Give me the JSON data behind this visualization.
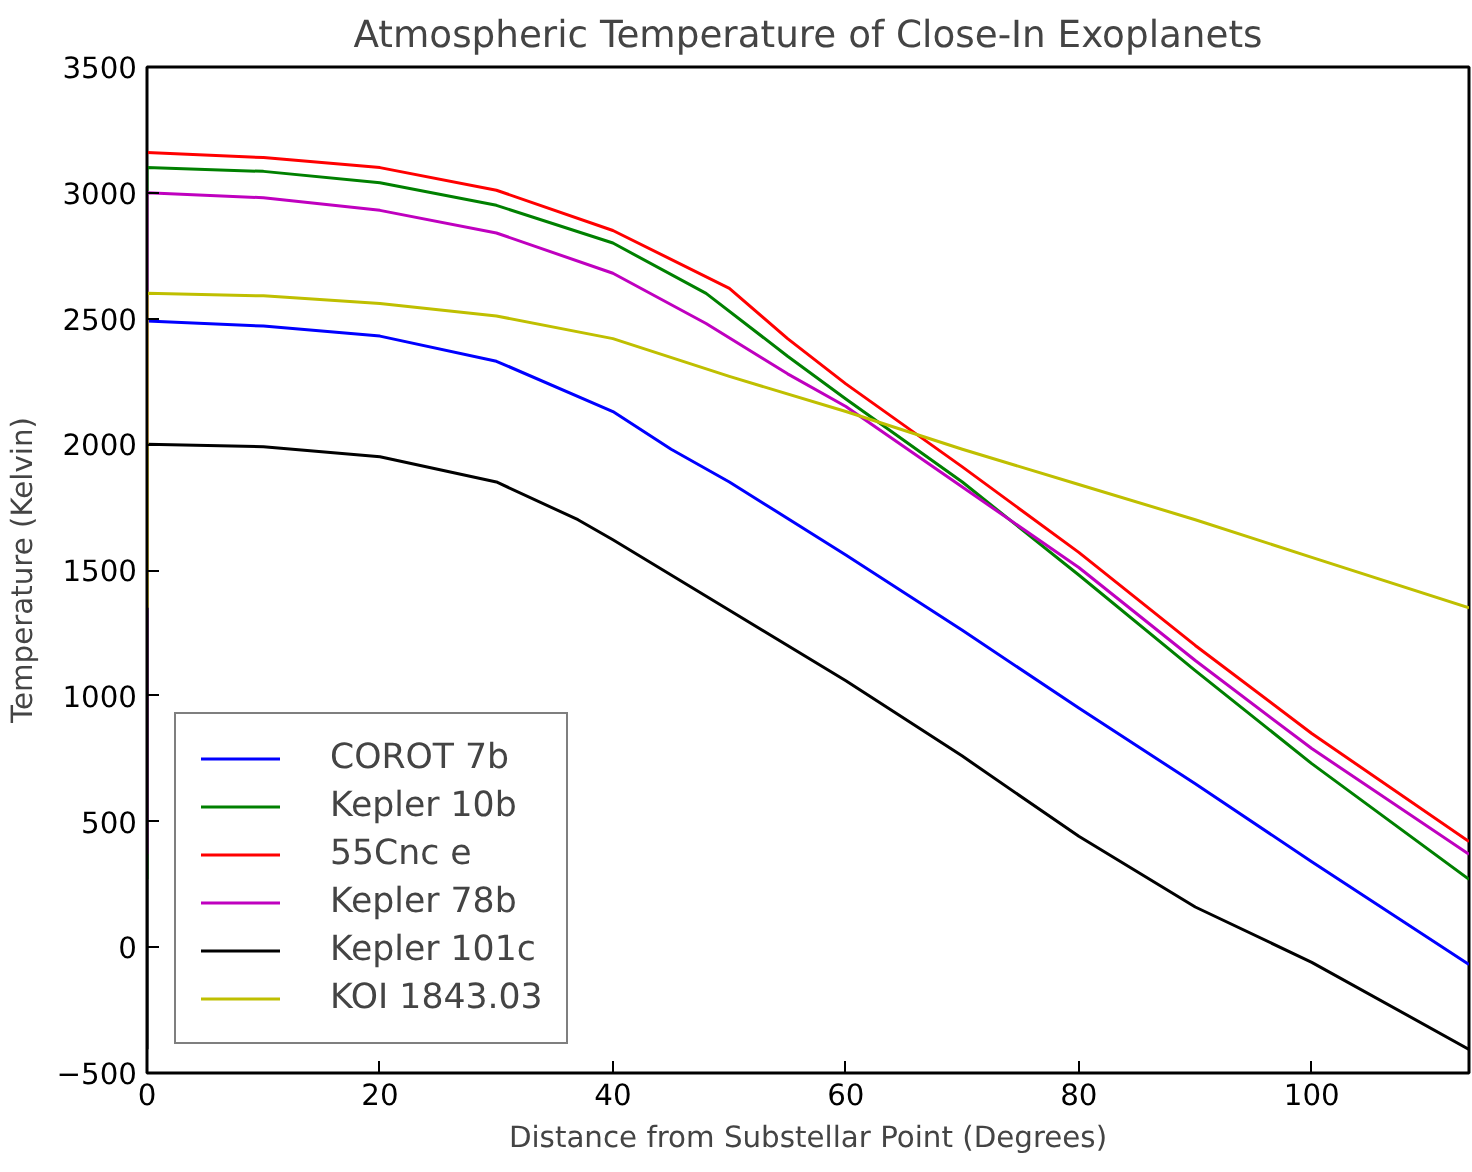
{
  "chart_data": {
    "type": "line",
    "title": "Atmospheric Temperature of Close-In Exoplanets",
    "xlabel": "Distance from Substellar Point (Degrees)",
    "ylabel": "Temperature (Kelvin)",
    "xlim": [
      0,
      113.5
    ],
    "ylim": [
      -500,
      3500
    ],
    "xticks": [
      0,
      20,
      40,
      60,
      80,
      100
    ],
    "yticks": [
      -500,
      0,
      500,
      1000,
      1500,
      2000,
      2500,
      3000,
      3500
    ],
    "grid": false,
    "legend": "bottom left",
    "marker": "none",
    "line_style": "solid",
    "series": [
      {
        "name": "COROT 7b",
        "color": "#0000ff",
        "x": [
          0,
          10,
          20,
          30,
          40,
          45,
          50,
          60,
          70,
          80,
          90,
          100,
          113.5
        ],
        "values": [
          2490,
          2470,
          2430,
          2330,
          2130,
          1980,
          1850,
          1560,
          1260,
          951,
          650,
          340,
          -69
        ]
      },
      {
        "name": "Kepler 10b",
        "color": "#008000",
        "x": [
          0,
          0,
          10,
          20,
          30,
          40,
          48,
          55,
          60,
          70,
          80,
          90,
          100,
          113.5
        ],
        "values": [
          270,
          3100,
          3085,
          3040,
          2950,
          2800,
          2600,
          2350,
          2180,
          1850,
          1480,
          1100,
          730,
          270
        ]
      },
      {
        "name": "55Cnc e",
        "color": "#ff0000",
        "x": [
          0,
          10,
          20,
          30,
          40,
          50,
          55,
          60,
          70,
          80,
          90,
          100,
          113.5
        ],
        "values": [
          3160,
          3140,
          3100,
          3010,
          2850,
          2620,
          2420,
          2240,
          1910,
          1570,
          1200,
          850,
          420
        ]
      },
      {
        "name": "Kepler 78b",
        "color": "#bf00bf",
        "x": [
          0,
          0,
          10,
          20,
          30,
          40,
          48,
          55,
          60,
          70,
          80,
          90,
          100,
          113.5
        ],
        "values": [
          370,
          3000,
          2980,
          2930,
          2840,
          2680,
          2480,
          2280,
          2150,
          1830,
          1510,
          1140,
          790,
          370
        ]
      },
      {
        "name": "Kepler 101c",
        "color": "#000000",
        "x": [
          0,
          0,
          10,
          20,
          30,
          37,
          40,
          50,
          60,
          70,
          80,
          90,
          100,
          113.5
        ],
        "values": [
          -406,
          2000,
          1990,
          1950,
          1850,
          1700,
          1620,
          1340,
          1060,
          760,
          441,
          160,
          -60,
          -406
        ]
      },
      {
        "name": "KOI 1843.03",
        "color": "#bfbf00",
        "x": [
          0,
          0,
          10,
          20,
          30,
          40,
          50,
          60,
          70,
          80,
          90,
          100,
          113.5
        ],
        "values": [
          1350,
          2600,
          2590,
          2560,
          2510,
          2420,
          2270,
          2130,
          1980,
          1840,
          1700,
          1550,
          1350
        ]
      }
    ]
  }
}
